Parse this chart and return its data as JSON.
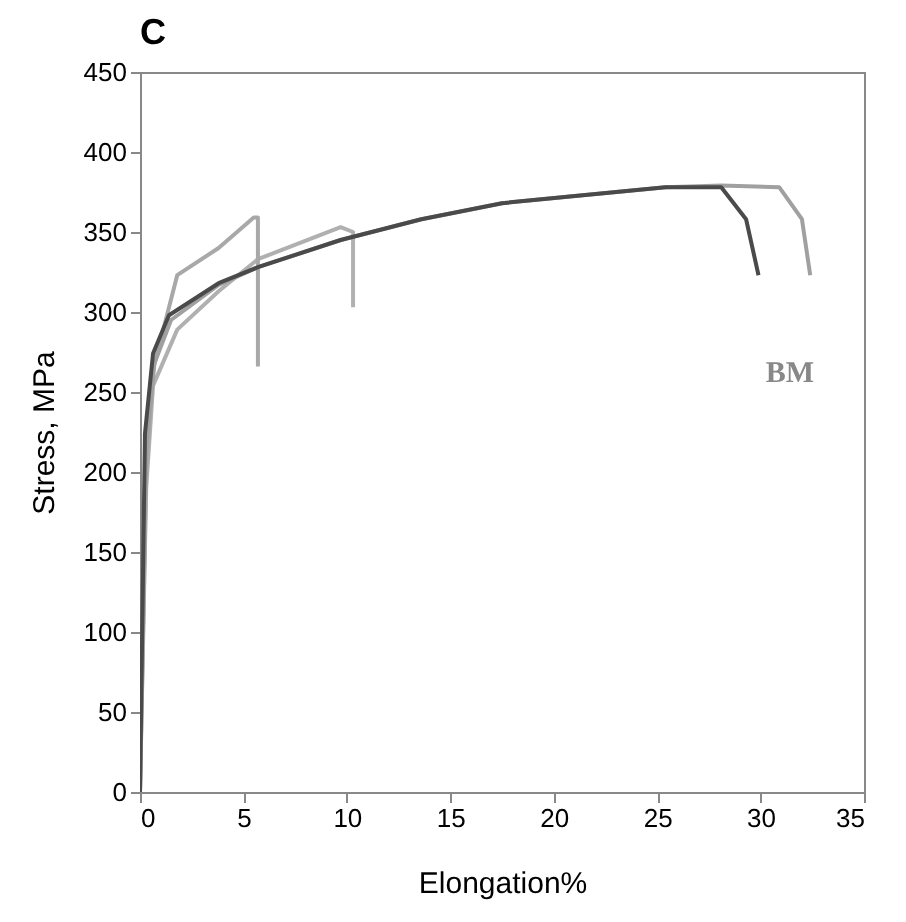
{
  "chart_data": {
    "type": "line",
    "title": "C",
    "xlabel": "Elongation%",
    "ylabel": "Stress, MPa",
    "xlim": [
      0,
      35
    ],
    "xticks": [
      0,
      5,
      10,
      15,
      20,
      25,
      30,
      35
    ],
    "ylim": [
      0,
      450
    ],
    "yticks": [
      0,
      50,
      100,
      150,
      200,
      250,
      300,
      350,
      400,
      450
    ],
    "grid": false,
    "marker": "none",
    "line_style": "solid",
    "annotations": [
      "BM"
    ],
    "series": [
      {
        "color": "#4a4a4a",
        "x": [
          0,
          0.24,
          0.63,
          1.4,
          3.8,
          5.7,
          9.7,
          13.6,
          17.5,
          21.4,
          25.4,
          28.1,
          29.3,
          29.9
        ],
        "values": [
          0,
          224,
          274,
          298,
          318,
          328,
          345,
          358,
          368,
          373,
          378,
          378,
          358,
          323
        ]
      },
      {
        "color": "#a0a0a0",
        "x": [
          0,
          0.3,
          0.7,
          1.5,
          3.8,
          5.7,
          9.7,
          13.6,
          17.5,
          21.4,
          25.4,
          28.1,
          30.9,
          32.0,
          32.4
        ],
        "values": [
          0,
          215,
          268,
          295,
          317,
          328,
          345,
          358,
          368,
          373,
          378,
          379,
          378,
          358,
          323
        ]
      },
      {
        "color": "#a8a8a8",
        "x": [
          0,
          0.3,
          0.63,
          1.8,
          3.8,
          5.5,
          5.7,
          5.7
        ],
        "values": [
          0,
          200,
          264,
          323,
          340,
          359,
          359,
          266
        ]
      },
      {
        "color": "#b0b0b0",
        "x": [
          0,
          0.3,
          0.63,
          1.8,
          3.8,
          5.7,
          9.7,
          10.3,
          10.3
        ],
        "values": [
          0,
          190,
          254,
          289,
          313,
          333,
          353,
          350,
          303
        ]
      }
    ]
  }
}
